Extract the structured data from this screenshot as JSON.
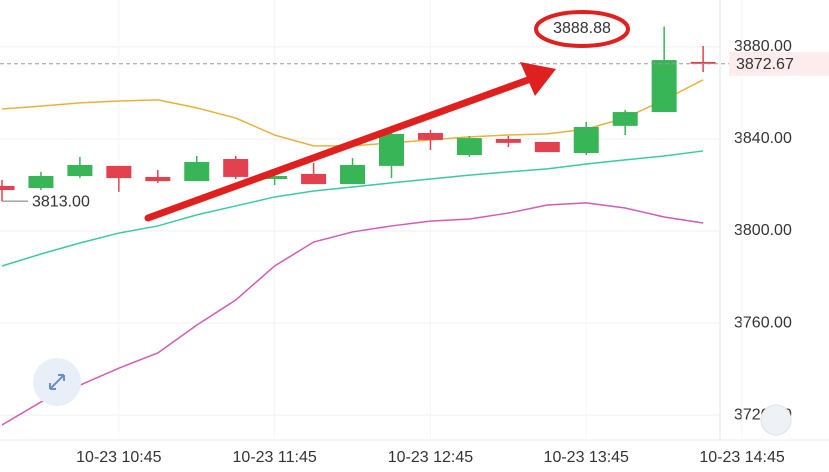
{
  "chart_data": {
    "type": "candlestick",
    "categories": [
      null,
      null,
      null,
      "10-23 10:45",
      null,
      null,
      null,
      "10-23 11:45",
      null,
      null,
      null,
      "10-23 12:45",
      null,
      null,
      null,
      "10-23 13:45",
      null,
      null,
      null,
      "10-23 14:45"
    ],
    "open": [
      3819.6,
      3818.7,
      3823.9,
      3828.3,
      3823.5,
      3821.7,
      3831.3,
      3822.6,
      3824.8,
      3820.4,
      3828.3,
      3842.6,
      3833.0,
      3840.0,
      3838.7,
      3833.9,
      3845.7,
      3851.7,
      3873.5,
      null
    ],
    "high": [
      3822.2,
      3825.7,
      3832.2,
      3828.3,
      3826.5,
      3832.6,
      3832.6,
      3826.5,
      3829.6,
      3831.7,
      3845.7,
      3843.9,
      3841.3,
      3841.3,
      3838.7,
      3847.4,
      3852.6,
      3888.88,
      3880.4,
      null
    ],
    "low": [
      3813,
      3817.8,
      3823.0,
      3817.0,
      3820.9,
      3821.7,
      3822.6,
      3820.0,
      3820.4,
      3820.4,
      3823.0,
      3835.2,
      3832.2,
      3836.5,
      3834.3,
      3833.0,
      3841.7,
      3851.7,
      3869.1,
      null
    ],
    "close": [
      3817.8,
      3823.9,
      3828.7,
      3823.0,
      3821.7,
      3830.0,
      3823.5,
      3823.9,
      3820.4,
      3828.7,
      3842.2,
      3839.6,
      3840.4,
      3838.3,
      3834.3,
      3845.2,
      3851.7,
      3874.3,
      3872.67,
      null
    ],
    "up_color": "#38b557",
    "down_color": "#e3414f",
    "lines": [
      {
        "color": "#e8b23a",
        "values": [
          3853.0,
          3854.3,
          3855.7,
          3856.5,
          3857.0,
          3853.5,
          3849.1,
          3841.7,
          3837.0,
          3837.0,
          3838.3,
          3839.6,
          3840.9,
          3841.7,
          3842.2,
          3844.3,
          3849.1,
          3857.0,
          3865.7,
          null
        ]
      },
      {
        "color": "#3cc9a5",
        "values": [
          3784.8,
          3790.0,
          3794.8,
          3799.1,
          3802.2,
          3807.0,
          3810.9,
          3814.8,
          3817.4,
          3819.1,
          3820.9,
          3822.6,
          3824.3,
          3825.7,
          3827.0,
          3829.1,
          3830.9,
          3832.6,
          3834.8,
          null
        ]
      },
      {
        "color": "#d35bb4",
        "values": [
          3715.7,
          3725.7,
          3733.0,
          3740.4,
          3747.0,
          3759.1,
          3770.0,
          3784.8,
          3795.2,
          3799.6,
          3802.2,
          3804.3,
          3805.2,
          3807.8,
          3811.3,
          3812.2,
          3810.0,
          3806.1,
          3803.5,
          null
        ]
      }
    ],
    "ylim": [
      3709.6,
      3900.4
    ],
    "yticks": [
      {
        "value": 3720,
        "label": "3720.00"
      },
      {
        "value": 3760,
        "label": "3760.00"
      },
      {
        "value": 3800,
        "label": "3800.00"
      },
      {
        "value": 3840,
        "label": "3840.00"
      },
      {
        "value": 3880,
        "label": "3880.00"
      }
    ],
    "grid": true,
    "current_price": 3872.67,
    "annotations": {
      "high": 3888.88,
      "low": {
        "value": 3813,
        "label": "3813.00"
      }
    }
  }
}
